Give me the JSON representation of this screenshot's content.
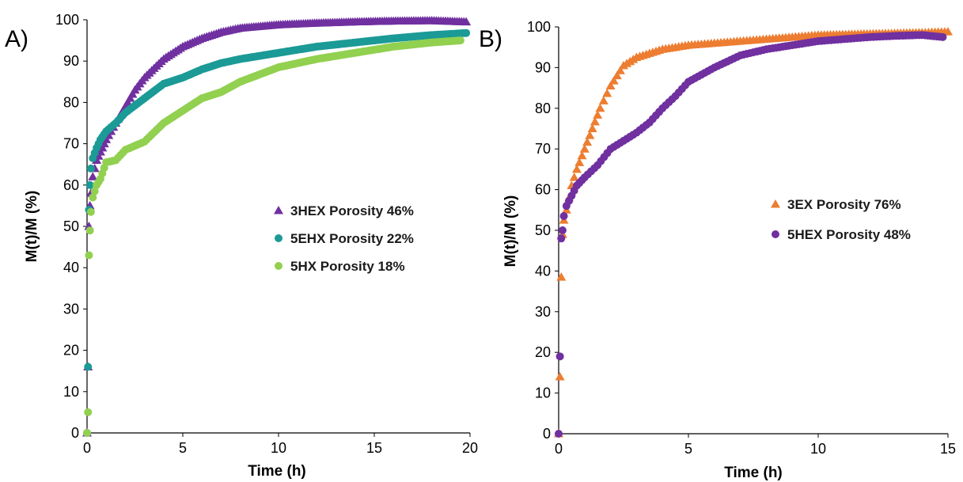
{
  "chart_data": [
    {
      "type": "scatter",
      "panel_label": "A)",
      "xlabel": "Time (h)",
      "ylabel": "M(t)/M (%)",
      "xlim": [
        0,
        20
      ],
      "ylim": [
        0,
        100
      ],
      "xticks": [
        "0",
        "5",
        "10",
        "15",
        "20"
      ],
      "yticks": [
        "0",
        "10",
        "20",
        "30",
        "40",
        "50",
        "60",
        "70",
        "80",
        "90",
        "100"
      ],
      "grid": false,
      "legend_position": "center-right",
      "series": [
        {
          "name": "3HEX Porosity 46%",
          "marker": "triangle",
          "color": "#7030A0",
          "x": [
            0,
            0.05,
            0.1,
            0.15,
            0.2,
            0.3,
            0.4,
            0.5,
            0.7,
            1,
            1.5,
            2,
            2.5,
            3,
            4,
            5,
            6,
            7,
            8,
            10,
            12,
            14,
            16,
            18,
            19.8
          ],
          "y": [
            0,
            16,
            50,
            55,
            58,
            62,
            64,
            66,
            68,
            71,
            75,
            79,
            83,
            86,
            90.5,
            93.5,
            95.5,
            97,
            98,
            98.8,
            99.2,
            99.5,
            99.7,
            99.8,
            99.5
          ]
        },
        {
          "name": "5EHX Porosity 22%",
          "marker": "circle",
          "color": "#1B9A96",
          "x": [
            0,
            0.05,
            0.1,
            0.15,
            0.2,
            0.3,
            0.5,
            0.7,
            1,
            1.5,
            2,
            3,
            4,
            5,
            6,
            7,
            8,
            10,
            12,
            14,
            16,
            18,
            19.8
          ],
          "y": [
            0,
            16,
            54,
            60,
            64,
            66.5,
            69,
            71,
            73,
            75,
            77.5,
            81,
            84.5,
            86,
            88,
            89.5,
            90.5,
            92,
            93.5,
            94.5,
            95.5,
            96.3,
            96.8
          ]
        },
        {
          "name": "5HX Porosity 18%",
          "marker": "circle",
          "color": "#92D050",
          "x": [
            0,
            0.05,
            0.1,
            0.15,
            0.2,
            0.3,
            0.5,
            0.7,
            1,
            1.5,
            2,
            3,
            4,
            5,
            6,
            7,
            8,
            10,
            12,
            14,
            16,
            18,
            19.5
          ],
          "y": [
            0,
            5,
            43,
            49,
            53.5,
            57,
            60,
            61.5,
            65.5,
            66,
            68.5,
            70.5,
            75,
            78,
            81,
            82.5,
            85,
            88.5,
            90.5,
            92,
            93.5,
            94.5,
            95
          ]
        }
      ]
    },
    {
      "type": "scatter",
      "panel_label": "B)",
      "xlabel": "Time (h)",
      "ylabel": "M(t)/M (%)",
      "xlim": [
        0,
        15
      ],
      "ylim": [
        0,
        100
      ],
      "xticks": [
        "0",
        "5",
        "10",
        "15"
      ],
      "yticks": [
        "0",
        "10",
        "20",
        "30",
        "40",
        "50",
        "60",
        "70",
        "80",
        "90",
        "100"
      ],
      "grid": false,
      "legend_position": "center-right",
      "series": [
        {
          "name": "3EX Porosity 76%",
          "marker": "triangle",
          "color": "#ED7D31",
          "x": [
            0,
            0.05,
            0.1,
            0.15,
            0.2,
            0.3,
            0.4,
            0.5,
            0.7,
            1,
            1.3,
            1.6,
            2,
            2.5,
            3,
            3.5,
            4,
            5,
            6,
            7,
            8,
            9,
            10,
            12,
            14,
            15
          ],
          "y": [
            0,
            14,
            38.5,
            49,
            52.5,
            55,
            58,
            61,
            65,
            70,
            75,
            80,
            85.5,
            90.5,
            92.5,
            93.5,
            94.5,
            95.5,
            96,
            96.5,
            97,
            97.5,
            98,
            98.3,
            98.6,
            98.8
          ]
        },
        {
          "name": "5HEX Porosity 48%",
          "marker": "circle",
          "color": "#7030A0",
          "x": [
            0,
            0.05,
            0.1,
            0.15,
            0.2,
            0.3,
            0.5,
            0.7,
            1,
            1.5,
            2,
            2.5,
            3,
            3.5,
            4,
            4.5,
            5,
            6,
            7,
            8,
            9,
            10,
            11,
            12,
            13,
            14,
            14.8
          ],
          "y": [
            0,
            19,
            48,
            50,
            53.5,
            56,
            58.5,
            61,
            63,
            66,
            70,
            72,
            74,
            76.5,
            80,
            83,
            86.5,
            90,
            93,
            94.5,
            95.5,
            96.5,
            97,
            97.5,
            97.8,
            98,
            97.5
          ]
        }
      ]
    }
  ]
}
